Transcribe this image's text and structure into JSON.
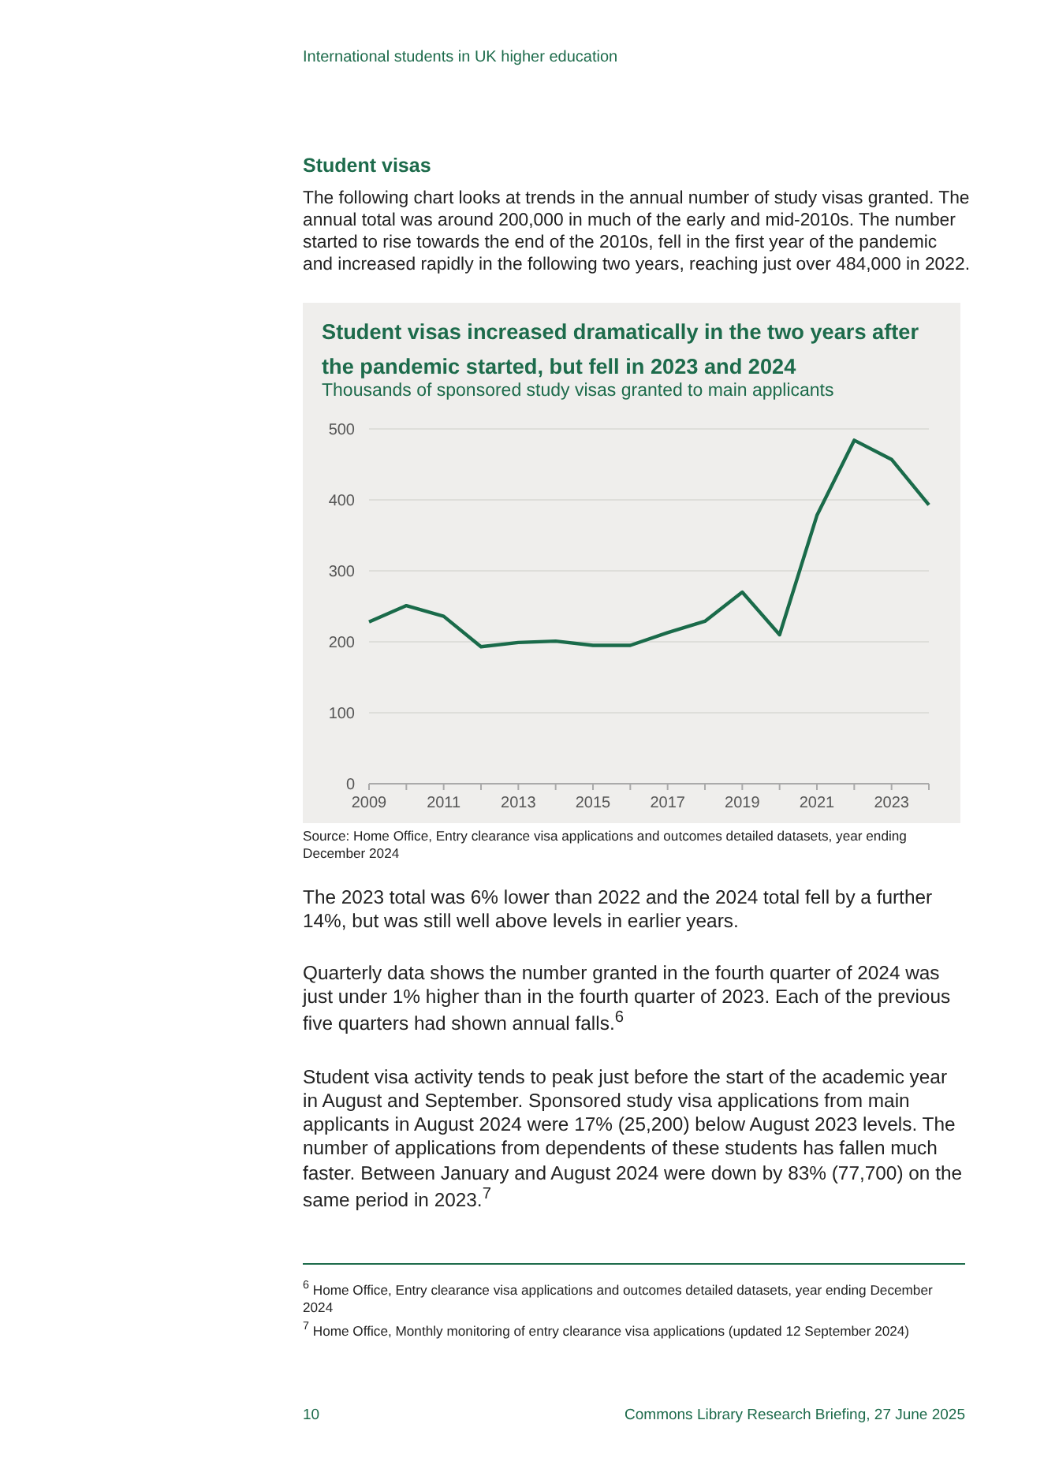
{
  "chart_data": {
    "type": "line",
    "title": "Student visas increased dramatically in the two years after the pandemic started, but fell in 2023 and 2024",
    "subtitle": "Thousands of sponsored study visas granted to main applicants",
    "x": [
      2009,
      2010,
      2011,
      2012,
      2013,
      2014,
      2015,
      2016,
      2017,
      2018,
      2019,
      2020,
      2021,
      2022,
      2023,
      2024
    ],
    "series": [
      {
        "color": "#1a6b4a",
        "values": [
          228,
          251,
          236,
          193,
          199,
          201,
          195,
          195,
          213,
          229,
          270,
          210,
          378,
          484,
          457,
          393
        ]
      }
    ],
    "xlim": [
      2009,
      2024
    ],
    "xticks": [
      2009,
      {
        "value": 2010,
        "label": null
      },
      2011,
      {
        "value": 2012,
        "label": null
      },
      2013,
      {
        "value": 2014,
        "label": null
      },
      2015,
      {
        "value": 2016,
        "label": null
      },
      2017,
      {
        "value": 2018,
        "label": null
      },
      2019,
      {
        "value": 2020,
        "label": null
      },
      2021,
      {
        "value": 2022,
        "label": null
      },
      2023,
      {
        "value": 2024,
        "label": null
      }
    ],
    "ylim": [
      0,
      500
    ],
    "yticks": [
      0,
      100,
      200,
      300,
      400,
      500
    ],
    "grid": "y",
    "marker": "none",
    "line_style": "solid",
    "annotations": [
      "International students in UK higher education",
      "Student visas",
      "The following chart looks at trends in the annual number of study visas granted. The annual total was around 200,000 in much of the early and mid-2010s. The number started to rise towards the end of the 2010s, fell in the first year of the pandemic and increased rapidly in the following two years, reaching just over 484,000 in 2022.",
      "Source: Home Office, Entry clearance visa applications and outcomes detailed datasets, year ending December 2024",
      "The 2023 total was 6% lower than 2022 and the 2024 total fell by a further 14%, but was still well above levels in earlier years.",
      "Quarterly data shows the number granted in the fourth quarter of 2024 was just under 1% higher than in the fourth quarter of 2023. Each of the previous five quarters had shown annual falls.$^{6}$",
      "Student visa activity tends to peak just before the start of the academic year in August and September. Sponsored study visa applications from main applicants in August 2024 were 17% (25,200) below August 2023 levels. The number of applications from dependents of these students has fallen much faster. Between January and August 2024 were down by 83% (77,700) on the same period in 2023.$^{7}$",
      "$^{6}$ Home Office, Entry clearance visa applications and outcomes detailed datasets, year ending December 2024",
      "$^{7}$ Home Office, Monthly monitoring of entry clearance visa applications (updated 12 September 2024)",
      "10",
      "Commons Library Research Briefing, 27 June 2025"
    ]
  }
}
